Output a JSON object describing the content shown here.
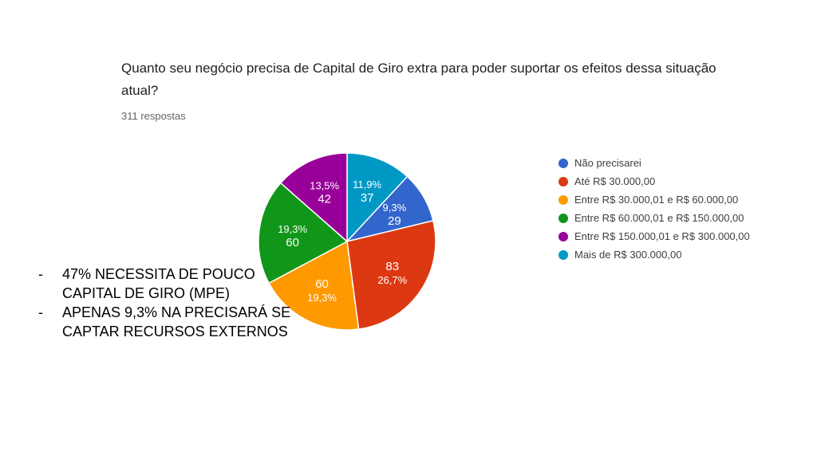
{
  "question": "Quanto seu negócio precisa de Capital de Giro extra para poder suportar os efeitos dessa situação atual?",
  "responses": "311 respostas",
  "chart_data": {
    "type": "pie",
    "categories": [
      "Não precisarei",
      "Até R$ 30.000,00",
      "Entre R$ 30.000,01 e R$ 60.000,00",
      "Entre R$ 60.000,01 e R$ 150.000,00",
      "Entre R$ 150.000,01 e R$ 300.000,00",
      "Mais de R$ 300.000,00"
    ],
    "values": [
      29,
      83,
      60,
      60,
      42,
      37
    ],
    "percent_labels": [
      "9,3%",
      "26,7%",
      "19,3%",
      "19,3%",
      "13,5%",
      "11,9%"
    ],
    "colors": [
      "#3366cc",
      "#dc3912",
      "#ff9900",
      "#109618",
      "#990099",
      "#0099c6"
    ],
    "legend_position": "right"
  },
  "notes": [
    {
      "dash": "-",
      "text": "47% NECESSITA DE POUCO CAPITAL DE GIRO (MPE)"
    },
    {
      "dash": "-",
      "text": "APENAS 9,3% NA PRECISARÁ SE CAPTAR RECURSOS EXTERNOS"
    }
  ]
}
